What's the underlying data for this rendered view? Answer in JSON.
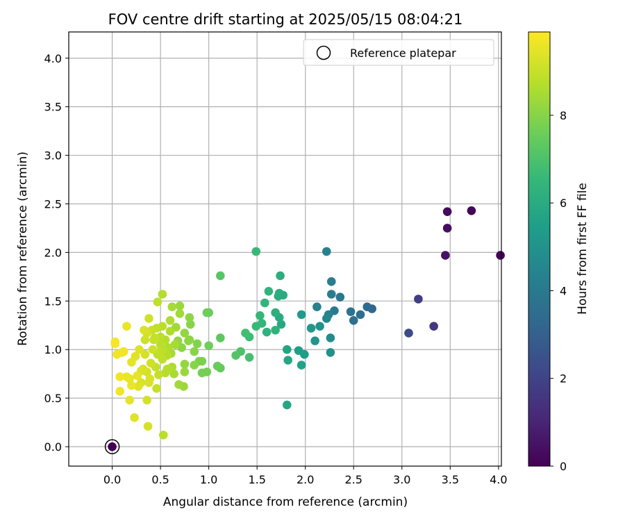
{
  "chart_data": {
    "type": "scatter",
    "title": "FOV centre drift starting at 2025/05/15 08:04:21",
    "xlabel": "Angular distance from reference (arcmin)",
    "ylabel": "Rotation from reference (arcmin)",
    "xlim": [
      -0.45,
      4.03
    ],
    "ylim": [
      -0.2,
      4.27
    ],
    "xticks": [
      "0.0",
      "0.5",
      "1.0",
      "1.5",
      "2.0",
      "2.5",
      "3.0",
      "3.5",
      "4.0"
    ],
    "yticks": [
      "0.0",
      "0.5",
      "1.0",
      "1.5",
      "2.0",
      "2.5",
      "3.0",
      "3.5",
      "4.0"
    ],
    "grid": true,
    "legend": {
      "position": "top-right",
      "entries": [
        "Reference platepar"
      ]
    },
    "reference_point": {
      "x": 0.0,
      "y": 0.0
    },
    "colorbar": {
      "label": "Hours from first FF file",
      "range": [
        0,
        9.9
      ],
      "ticks": [
        "0",
        "2",
        "4",
        "6",
        "8"
      ],
      "colormap": "viridis"
    },
    "points": [
      [
        3.72,
        2.43,
        0.15
      ],
      [
        3.47,
        2.42,
        0.25
      ],
      [
        3.47,
        2.25,
        0.35
      ],
      [
        3.45,
        1.97,
        0.45
      ],
      [
        4.02,
        1.97,
        0.1
      ],
      [
        3.33,
        1.24,
        1.6
      ],
      [
        3.17,
        1.52,
        1.8
      ],
      [
        3.07,
        1.17,
        2.2
      ],
      [
        2.69,
        1.42,
        3.3
      ],
      [
        2.64,
        1.44,
        3.4
      ],
      [
        2.57,
        1.36,
        3.5
      ],
      [
        2.5,
        1.3,
        3.6
      ],
      [
        2.47,
        1.39,
        3.7
      ],
      [
        2.36,
        1.54,
        3.9
      ],
      [
        2.3,
        1.4,
        4.0
      ],
      [
        2.27,
        1.57,
        4.1
      ],
      [
        2.27,
        1.7,
        4.2
      ],
      [
        2.22,
        2.01,
        4.3
      ],
      [
        2.24,
        1.36,
        4.4
      ],
      [
        2.22,
        1.32,
        4.5
      ],
      [
        2.12,
        1.44,
        4.3
      ],
      [
        2.26,
        1.12,
        4.8
      ],
      [
        2.26,
        0.97,
        4.9
      ],
      [
        2.15,
        1.24,
        5.0
      ],
      [
        2.1,
        1.09,
        5.1
      ],
      [
        2.06,
        1.22,
        5.2
      ],
      [
        1.96,
        1.36,
        5.3
      ],
      [
        1.99,
        0.95,
        5.4
      ],
      [
        1.93,
        0.99,
        5.5
      ],
      [
        1.96,
        0.84,
        5.6
      ],
      [
        1.81,
        1.0,
        5.7
      ],
      [
        1.82,
        0.89,
        5.8
      ],
      [
        1.81,
        0.43,
        5.8
      ],
      [
        1.75,
        1.26,
        5.9
      ],
      [
        1.73,
        1.33,
        6.0
      ],
      [
        1.77,
        1.56,
        6.0
      ],
      [
        1.73,
        1.58,
        6.1
      ],
      [
        1.72,
        1.55,
        6.1
      ],
      [
        1.74,
        1.76,
        6.1
      ],
      [
        1.69,
        1.38,
        6.2
      ],
      [
        1.69,
        1.2,
        6.3
      ],
      [
        1.62,
        1.6,
        6.4
      ],
      [
        1.6,
        1.18,
        6.3
      ],
      [
        1.58,
        1.48,
        6.4
      ],
      [
        1.55,
        1.27,
        6.5
      ],
      [
        1.53,
        1.35,
        6.5
      ],
      [
        1.49,
        1.24,
        6.6
      ],
      [
        1.49,
        2.01,
        6.6
      ],
      [
        1.42,
        1.13,
        6.7
      ],
      [
        1.38,
        1.17,
        6.8
      ],
      [
        1.42,
        0.92,
        6.9
      ],
      [
        1.33,
        0.98,
        7.0
      ],
      [
        1.28,
        0.94,
        7.1
      ],
      [
        1.12,
        1.76,
        7.2
      ],
      [
        1.12,
        1.12,
        7.3
      ],
      [
        1.12,
        0.81,
        7.4
      ],
      [
        1.09,
        0.83,
        7.5
      ],
      [
        1.0,
        1.38,
        7.5
      ],
      [
        0.98,
        1.38,
        7.6
      ],
      [
        1.0,
        1.04,
        7.6
      ],
      [
        0.98,
        0.77,
        7.7
      ],
      [
        0.93,
        0.76,
        7.7
      ],
      [
        0.93,
        0.88,
        7.8
      ],
      [
        0.9,
        0.88,
        7.8
      ],
      [
        0.88,
        1.06,
        7.9
      ],
      [
        0.85,
        0.98,
        8.0
      ],
      [
        0.85,
        0.84,
        8.0
      ],
      [
        0.81,
        1.26,
        8.0
      ],
      [
        0.8,
        1.33,
        8.1
      ],
      [
        0.8,
        1.1,
        8.1
      ],
      [
        0.75,
        1.17,
        8.2
      ],
      [
        0.75,
        0.85,
        8.2
      ],
      [
        0.75,
        0.77,
        8.3
      ],
      [
        0.74,
        0.62,
        8.3
      ],
      [
        0.7,
        1.45,
        8.3
      ],
      [
        0.7,
        1.37,
        8.4
      ],
      [
        0.66,
        1.23,
        8.4
      ],
      [
        0.69,
        0.64,
        8.4
      ],
      [
        0.65,
        1.05,
        8.5
      ],
      [
        0.62,
        1.44,
        8.5
      ],
      [
        0.6,
        1.3,
        8.6
      ],
      [
        0.6,
        1.19,
        8.6
      ],
      [
        0.62,
        0.82,
        8.6
      ],
      [
        0.57,
        0.94,
        8.7
      ],
      [
        0.55,
        0.76,
        8.7
      ],
      [
        0.52,
        1.57,
        8.7
      ],
      [
        0.53,
        0.12,
        8.8
      ],
      [
        0.52,
        1.24,
        8.8
      ],
      [
        0.5,
        1.13,
        8.8
      ],
      [
        0.5,
        1.05,
        8.8
      ],
      [
        0.5,
        0.98,
        8.9
      ],
      [
        0.47,
        1.49,
        8.9
      ],
      [
        0.46,
        1.22,
        8.9
      ],
      [
        0.48,
        0.74,
        9.0
      ],
      [
        0.46,
        0.6,
        9.0
      ],
      [
        0.43,
        1.1,
        9.0
      ],
      [
        0.42,
        1.0,
        9.1
      ],
      [
        0.4,
        0.86,
        9.1
      ],
      [
        0.38,
        1.32,
        9.1
      ],
      [
        0.36,
        1.17,
        9.2
      ],
      [
        0.34,
        0.95,
        9.2
      ],
      [
        0.36,
        0.48,
        9.2
      ],
      [
        0.37,
        0.21,
        9.2
      ],
      [
        0.33,
        1.2,
        9.3
      ],
      [
        0.32,
        0.8,
        9.3
      ],
      [
        0.3,
        0.66,
        9.3
      ],
      [
        0.28,
        1.0,
        9.4
      ],
      [
        0.27,
        0.62,
        9.4
      ],
      [
        0.24,
        0.93,
        9.4
      ],
      [
        0.23,
        0.3,
        9.4
      ],
      [
        0.2,
        0.87,
        9.5
      ],
      [
        0.18,
        0.7,
        9.5
      ],
      [
        0.18,
        0.48,
        9.5
      ],
      [
        0.15,
        0.72,
        9.6
      ],
      [
        0.15,
        1.24,
        9.6
      ],
      [
        0.1,
        0.97,
        9.6
      ],
      [
        0.08,
        0.72,
        9.7
      ],
      [
        0.08,
        0.57,
        9.7
      ],
      [
        0.05,
        0.95,
        9.7
      ],
      [
        0.03,
        1.06,
        9.8
      ],
      [
        0.03,
        1.08,
        9.8
      ],
      [
        0.34,
        1.1,
        9.1
      ],
      [
        0.58,
        1.02,
        8.6
      ],
      [
        0.68,
        1.09,
        8.2
      ],
      [
        0.45,
        0.82,
        9.0
      ],
      [
        0.26,
        0.73,
        9.5
      ],
      [
        0.39,
        0.7,
        9.3
      ],
      [
        0.52,
        0.9,
        8.9
      ],
      [
        0.61,
        0.96,
        8.5
      ],
      [
        0.72,
        1.02,
        8.1
      ],
      [
        0.79,
        1.09,
        8.0
      ],
      [
        0.41,
        1.2,
        9.0
      ],
      [
        0.55,
        1.1,
        8.7
      ],
      [
        0.36,
        0.77,
        9.2
      ],
      [
        0.2,
        0.63,
        9.6
      ],
      [
        0.3,
        0.78,
        9.3
      ],
      [
        0.47,
        0.95,
        8.9
      ],
      [
        0.53,
        1.0,
        8.8
      ],
      [
        0.38,
        0.66,
        9.3
      ],
      [
        0.64,
        0.75,
        8.5
      ],
      [
        0.57,
        0.8,
        8.7
      ],
      [
        0.12,
        0.98,
        9.7
      ],
      [
        0.44,
        1.12,
        9.0
      ]
    ]
  }
}
